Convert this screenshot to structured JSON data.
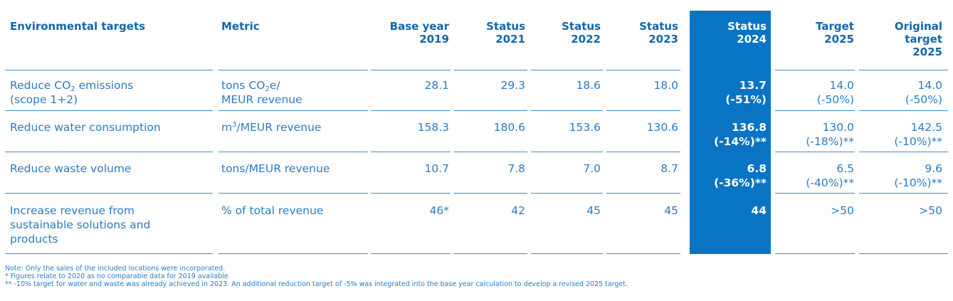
{
  "table": {
    "headers": {
      "environmental_targets": "Environmental targets",
      "metric": "Metric",
      "base_year_1": "Base year",
      "base_year_2": "2019",
      "status_2021_1": "Status",
      "status_2021_2": "2021",
      "status_2022_1": "Status",
      "status_2022_2": "2022",
      "status_2023_1": "Status",
      "status_2023_2": "2023",
      "status_2024_1": "Status",
      "status_2024_2": "2024",
      "target_2025_1": "Target",
      "target_2025_2": "2025",
      "original_1": "Original",
      "original_2": "target",
      "original_3": "2025"
    },
    "rows": [
      {
        "target_line1_pre": "Reduce CO",
        "target_line1_sub": "2",
        "target_line1_post": " emissions",
        "target_line2": "(scope 1+2)",
        "metric_line1_pre": "tons CO",
        "metric_line1_sub": "2",
        "metric_line1_post": "e/",
        "metric_line2": "MEUR revenue",
        "base": "28.1",
        "s2021": "29.3",
        "s2022": "18.6",
        "s2023": "18.0",
        "s2024": "13.7",
        "s2024_pct": "(-51%)",
        "target": "14.0",
        "target_pct": "(-50%)",
        "original": "14.0",
        "original_pct": "(-50%)"
      },
      {
        "target": "Reduce water consumption",
        "metric_pre": "m",
        "metric_sup": "3",
        "metric_post": "/MEUR revenue",
        "base": "158.3",
        "s2021": "180.6",
        "s2022": "153.6",
        "s2023": "130.6",
        "s2024": "136.8",
        "s2024_pct": "(-14%)**",
        "target_val": "130.0",
        "target_pct": "(-18%)**",
        "original": "142.5",
        "original_pct": "(-10%)**"
      },
      {
        "target": "Reduce waste volume",
        "metric": "tons/MEUR revenue",
        "base": "10.7",
        "s2021": "7.8",
        "s2022": "7.0",
        "s2023": "8.7",
        "s2024": "6.8",
        "s2024_pct": "(-36%)**",
        "target_val": "6.5",
        "target_pct": "(-40%)**",
        "original": "9.6",
        "original_pct": "(-10%)**"
      },
      {
        "target_line1": "Increase revenue from",
        "target_line2": "sustainable solutions and",
        "target_line3": "products",
        "metric": "% of total revenue",
        "base": "46*",
        "s2021": "42",
        "s2022": "45",
        "s2023": "45",
        "s2024": "44",
        "target_val": ">50",
        "original": ">50"
      }
    ]
  },
  "notes": {
    "line1": "Note: Only the sales of the included locations were incorporated.",
    "line2": "* Figures relate to 2020 as no comparable data for 2019 available",
    "line3": "** -10% target for water and waste was already achieved in 2023. An additional reduction target of -5% was integrated into the base year calculation to develop a revised 2025 target."
  },
  "colors": {
    "text": "#2a7cc3",
    "header_text": "#1167ad",
    "highlight_column": "#0a74c4",
    "rule": "#3d8ed2"
  }
}
